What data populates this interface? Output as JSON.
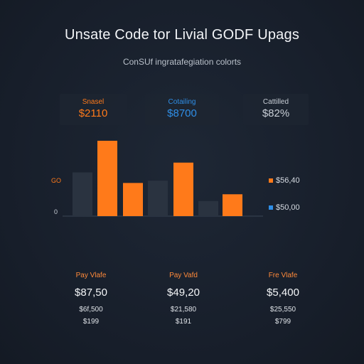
{
  "header": {
    "title": "Unsate Code tor Livial GODF Upags",
    "subtitle": "ConSUf ingratafegiation colorts"
  },
  "kpis": [
    {
      "label": "Snasel",
      "value": "$2110",
      "color": "#ff7a1a"
    },
    {
      "label": "Cotailing",
      "value": "$8700",
      "color": "#2f8ee6"
    },
    {
      "label": "Cattilled",
      "value": "$82%",
      "color": "#c8ced6"
    }
  ],
  "colors": {
    "accent_orange": "#ff7a1a",
    "accent_blue": "#2f8ee6",
    "muted_bar": "#2a3340",
    "background": "#1a2230"
  },
  "chart_data": {
    "type": "bar",
    "y_tick_labels": [
      "GO",
      "0"
    ],
    "series": [
      {
        "values": [
          0,
          100,
          0,
          0,
          0,
          0,
          0,
          0
        ]
      },
      {
        "values": [
          0,
          0,
          0,
          0,
          0,
          0,
          0,
          0
        ]
      }
    ],
    "bars": [
      {
        "value": 58,
        "color": "#2a3340"
      },
      {
        "value": 100,
        "color": "#ff7a1a"
      },
      {
        "value": 44,
        "color": "#ff7a1a"
      },
      {
        "value": 47,
        "color": "#2a3340"
      },
      {
        "value": 71,
        "color": "#ff7a1a"
      },
      {
        "value": 20,
        "color": "#2a3340"
      },
      {
        "value": 29,
        "color": "#ff7a1a"
      }
    ],
    "ylim": [
      0,
      100
    ],
    "legend": [
      {
        "label": "$56,40",
        "color": "#ff7a1a"
      },
      {
        "label": "$50,00",
        "color": "#2f8ee6"
      }
    ],
    "legend_position": "right",
    "grid": false
  },
  "cards": [
    {
      "label": "Pay Vlafe",
      "amount": "$87,50",
      "sub1": "$6f,500",
      "sub2": "$199"
    },
    {
      "label": "Pay Vafd",
      "amount": "$49,20",
      "sub1": "$21,580",
      "sub2": "$191"
    },
    {
      "label": "Fre Vlafe",
      "amount": "$5,400",
      "sub1": "$25,550",
      "sub2": "$799"
    }
  ]
}
